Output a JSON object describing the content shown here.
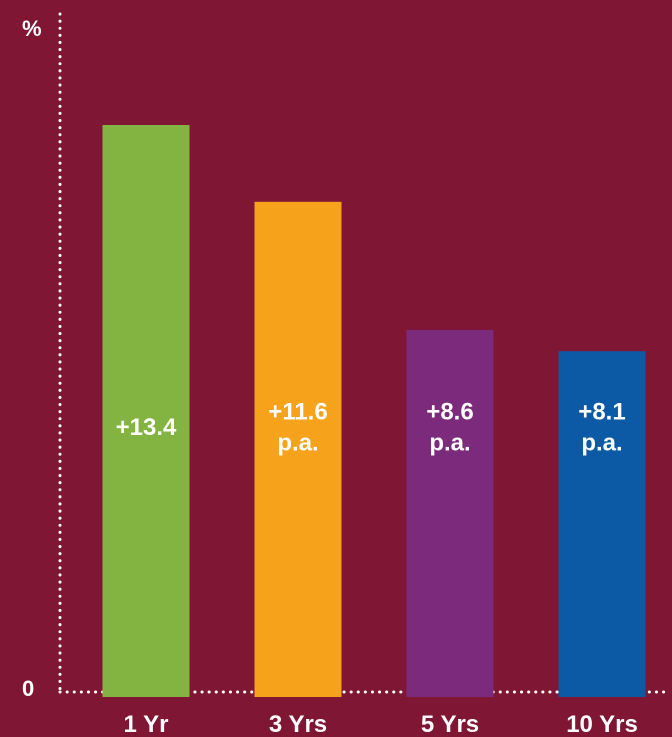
{
  "chart_data": {
    "type": "bar",
    "categories": [
      "1 Yr",
      "3 Yrs",
      "5 Yrs",
      "10 Yrs"
    ],
    "values": [
      13.4,
      11.6,
      8.6,
      8.1
    ],
    "value_labels": [
      "+13.4",
      "+11.6 p.a.",
      "+8.6 p.a.",
      "+8.1 p.a."
    ],
    "bar_colors": [
      "#83b441",
      "#f7a21b",
      "#7c2a7c",
      "#0c5aa6"
    ],
    "ylabel": "%",
    "y_tick_labels": [
      "0"
    ],
    "ylim": [
      0,
      16
    ],
    "grid": false,
    "legend": "none",
    "axis_style": "dotted",
    "background_color": "#7f1734",
    "text_color": "#ffffff"
  }
}
